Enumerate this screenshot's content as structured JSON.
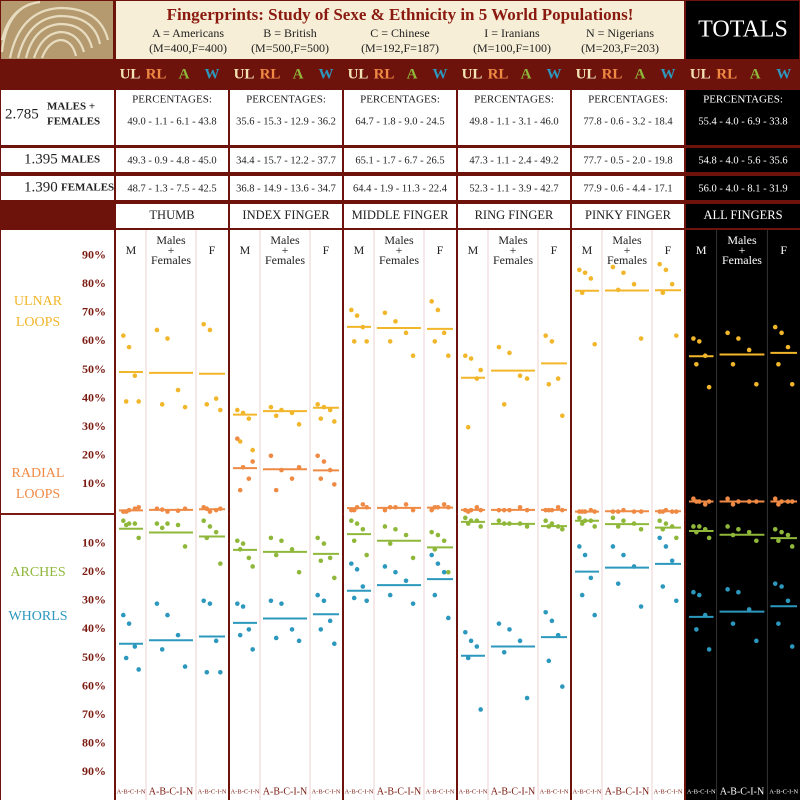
{
  "header": {
    "title": "Fingerprints: Study of Sexe & Ethnicity in 5 World Populations!",
    "legend": [
      {
        "label": "A = Americans",
        "count": "(M=400,F=400)"
      },
      {
        "label": "B = British",
        "count": "(M=500,F=500)"
      },
      {
        "label": "C = Chinese",
        "count": "(M=192,F=187)"
      },
      {
        "label": "I = Iranians",
        "count": "(M=100,F=100)"
      },
      {
        "label": "N = Nigerians",
        "count": "(M=203,F=203)"
      }
    ],
    "totals": "TOTALS"
  },
  "categories": [
    {
      "code": "UL",
      "color": "#f2b62a",
      "header_color": "#f3e3b4",
      "label": [
        "ULNAR",
        "LOOPS"
      ]
    },
    {
      "code": "RL",
      "color": "#ef8a45",
      "header_color": "#ef8a45",
      "label": [
        "RADIAL",
        "LOOPS"
      ]
    },
    {
      "code": "A",
      "color": "#8fb83a",
      "header_color": "#8fb83a",
      "label": [
        "ARCHES"
      ]
    },
    {
      "code": "W",
      "color": "#2c98bd",
      "header_color": "#2c98bd",
      "label": [
        "WHORLS"
      ]
    }
  ],
  "percentages_label": "PERCENTAGES:",
  "row_labels": [
    {
      "count": "2.785",
      "label": [
        "MALES +",
        "FEMALES"
      ]
    },
    {
      "count": "1.395",
      "label": [
        "MALES"
      ]
    },
    {
      "count": "1.390",
      "label": [
        "FEMALES"
      ]
    }
  ],
  "group_labels": [
    [
      "M"
    ],
    [
      "Males",
      "+",
      "Females"
    ],
    [
      "F"
    ]
  ],
  "population_codes": "A-B-C-I-N",
  "axis": {
    "lim": [
      0,
      100
    ],
    "upper_ticks": [
      {
        "value": 90,
        "label": "90%"
      },
      {
        "value": 80,
        "label": "80%"
      },
      {
        "value": 70,
        "label": "70%"
      },
      {
        "value": 60,
        "label": "60%"
      },
      {
        "value": 50,
        "label": "50%"
      },
      {
        "value": 40,
        "label": "40%"
      },
      {
        "value": 30,
        "label": "30%"
      },
      {
        "value": 20,
        "label": "20%"
      },
      {
        "value": 10,
        "label": "10%"
      }
    ],
    "lower_ticks": [
      {
        "value": 10,
        "label": "10%"
      },
      {
        "value": 20,
        "label": "20%"
      },
      {
        "value": 30,
        "label": "30%"
      },
      {
        "value": 40,
        "label": "40%"
      },
      {
        "value": 50,
        "label": "50%"
      },
      {
        "value": 60,
        "label": "60%"
      },
      {
        "value": 70,
        "label": "70%"
      },
      {
        "value": 80,
        "label": "80%"
      },
      {
        "value": 90,
        "label": "90%"
      }
    ]
  },
  "columns": [
    {
      "name": "THUMB",
      "rows": [
        "49.0 - 1.1 - 6.1 - 43.8",
        "49.3 - 0.9 - 4.8 - 45.0",
        "48.7 - 1.3 - 7.5 - 42.5"
      ],
      "groups": [
        {
          "means": [
            49.3,
            0.9,
            4.8,
            45.0
          ],
          "dots": [
            [
              62,
              58,
              48,
              39,
              39
            ],
            [
              0.5,
              1,
              1.5,
              0.5,
              2
            ],
            [
              2,
              3,
              3,
              3.5,
              8
            ],
            [
              35,
              38,
              46,
              50,
              54
            ]
          ]
        },
        {
          "means": [
            49.0,
            1.1,
            6.1,
            43.8
          ],
          "dots": [
            [
              64,
              61,
              43,
              38,
              37
            ],
            [
              1.5,
              0.5,
              0.8,
              1.2,
              1.5
            ],
            [
              3,
              3,
              3.5,
              4.5,
              11
            ],
            [
              31,
              35,
              42,
              47,
              53
            ]
          ]
        },
        {
          "means": [
            48.7,
            1.3,
            7.5,
            42.5
          ],
          "dots": [
            [
              66,
              64,
              40,
              38,
              36
            ],
            [
              2,
              0.5,
              1,
              1.5,
              1.5
            ],
            [
              2,
              4,
              6,
              8,
              17
            ],
            [
              30,
              31,
              44,
              55,
              55
            ]
          ]
        }
      ]
    },
    {
      "name": "INDEX FINGER",
      "rows": [
        "35.6 - 15.3 - 12.9 - 36.2",
        "34.4 - 15.7 - 12.2 - 37.7",
        "36.8 - 14.9 - 13.6 - 34.7"
      ],
      "groups": [
        {
          "means": [
            34.4,
            15.7,
            12.2,
            37.7
          ],
          "dots": [
            [
              36,
              35,
              33,
              25,
              22
            ],
            [
              26,
              16,
              12,
              8,
              18
            ],
            [
              9,
              10,
              15,
              12,
              18
            ],
            [
              31,
              32,
              40,
              42,
              47
            ]
          ]
        },
        {
          "means": [
            35.6,
            15.3,
            12.9,
            36.2
          ],
          "dots": [
            [
              37,
              36,
              35,
              34,
              31
            ],
            [
              20,
              15,
              12,
              8,
              16
            ],
            [
              8,
              9,
              12,
              14,
              20
            ],
            [
              30,
              31,
              40,
              43,
              44
            ]
          ]
        },
        {
          "means": [
            36.8,
            14.9,
            13.6,
            34.7
          ],
          "dots": [
            [
              38,
              37,
              36,
              33,
              32
            ],
            [
              20,
              18,
              15,
              12,
              10
            ],
            [
              8,
              10,
              15,
              16,
              22
            ],
            [
              28,
              30,
              37,
              40,
              45
            ]
          ]
        }
      ]
    },
    {
      "name": "MIDDLE FINGER",
      "rows": [
        "64.7 - 1.8 - 9.0 - 24.5",
        "65.1 - 1.7 - 6.7 - 26.5",
        "64.4 - 1.9 - 11.3 - 22.4"
      ],
      "groups": [
        {
          "means": [
            65.1,
            1.7,
            6.7,
            26.5
          ],
          "dots": [
            [
              71,
              69,
              65,
              60,
              60
            ],
            [
              1,
              2,
              3,
              1,
              2
            ],
            [
              2,
              3,
              5,
              9,
              14
            ],
            [
              17,
              19,
              25,
              29,
              30
            ]
          ]
        },
        {
          "means": [
            64.7,
            1.8,
            9.0,
            24.5
          ],
          "dots": [
            [
              70,
              67,
              63,
              60,
              55
            ],
            [
              1,
              2,
              3,
              2,
              1
            ],
            [
              4,
              5,
              7,
              10,
              15
            ],
            [
              18,
              20,
              23,
              28,
              31
            ]
          ]
        },
        {
          "means": [
            64.4,
            1.9,
            11.3,
            22.4
          ],
          "dots": [
            [
              74,
              71,
              63,
              60,
              55
            ],
            [
              1,
              2,
              3,
              2,
              2
            ],
            [
              6,
              7,
              9,
              12,
              20
            ],
            [
              14,
              17,
              20,
              28,
              36
            ]
          ]
        }
      ]
    },
    {
      "name": "RING FINGER",
      "rows": [
        "49.8 - 1.1 - 3.1 - 46.0",
        "47.3 - 1.1 - 2.4 - 49.2",
        "52.3 - 1.1 - 3.9 - 42.7"
      ],
      "groups": [
        {
          "means": [
            47.3,
            1.1,
            2.4,
            49.2
          ],
          "dots": [
            [
              55,
              54,
              47,
              30,
              50
            ],
            [
              1,
              1,
              2,
              0.5,
              1
            ],
            [
              1,
              2,
              2,
              3,
              4
            ],
            [
              41,
              44,
              46,
              50,
              68
            ]
          ]
        },
        {
          "means": [
            49.8,
            1.1,
            3.1,
            46.0
          ],
          "dots": [
            [
              58,
              56,
              48,
              38,
              47
            ],
            [
              1,
              1,
              2,
              1,
              1
            ],
            [
              2,
              3,
              3,
              3,
              4
            ],
            [
              38,
              40,
              44,
              48,
              64
            ]
          ]
        },
        {
          "means": [
            52.3,
            1.1,
            3.9,
            42.7
          ],
          "dots": [
            [
              62,
              60,
              47,
              45,
              34
            ],
            [
              1,
              1,
              2,
              1,
              1
            ],
            [
              2,
              3,
              4,
              4,
              5
            ],
            [
              34,
              37,
              42,
              51,
              60
            ]
          ]
        }
      ]
    },
    {
      "name": "PINKY FINGER",
      "rows": [
        "77.8 - 0.6 - 3.2 - 18.4",
        "77.7 - 0.5 - 2.0 - 19.8",
        "77.9 - 0.6 - 4.4 - 17.1"
      ],
      "groups": [
        {
          "means": [
            77.7,
            0.5,
            2.0,
            19.8
          ],
          "dots": [
            [
              85,
              84,
              82,
              77,
              59
            ],
            [
              0.5,
              0.5,
              1,
              0.5,
              0.5
            ],
            [
              1,
              2,
              2,
              3,
              4
            ],
            [
              11,
              14,
              22,
              28,
              35
            ]
          ]
        },
        {
          "means": [
            77.8,
            0.6,
            3.2,
            18.4
          ],
          "dots": [
            [
              86,
              84,
              80,
              78,
              61
            ],
            [
              0.5,
              1,
              0.5,
              0.5,
              0.5
            ],
            [
              1,
              2,
              3,
              4,
              5
            ],
            [
              11,
              14,
              18,
              24,
              32
            ]
          ]
        },
        {
          "means": [
            77.9,
            0.6,
            4.4,
            17.1
          ],
          "dots": [
            [
              87,
              85,
              80,
              77,
              62
            ],
            [
              0.5,
              1,
              0.5,
              0.5,
              0.5
            ],
            [
              2,
              3,
              4,
              5,
              8
            ],
            [
              8,
              11,
              16,
              25,
              30
            ]
          ]
        }
      ]
    },
    {
      "name": "ALL FINGERS",
      "totals": true,
      "rows": [
        "55.4 - 4.0 - 6.9 - 33.8",
        "54.8 - 4.0 - 5.6 - 35.6",
        "56.0 - 4.0 - 8.1 - 31.9"
      ],
      "groups": [
        {
          "means": [
            54.8,
            4.0,
            5.6,
            35.6
          ],
          "dots": [
            [
              61,
              60,
              55,
              52,
              44
            ],
            [
              5,
              4,
              3,
              4,
              4
            ],
            [
              4,
              4,
              5,
              6,
              8
            ],
            [
              27,
              28,
              35,
              40,
              47
            ]
          ]
        },
        {
          "means": [
            55.4,
            4.0,
            6.9,
            33.8
          ],
          "dots": [
            [
              63,
              61,
              57,
              52,
              45
            ],
            [
              5,
              4,
              4,
              3,
              4
            ],
            [
              4,
              5,
              6,
              7,
              9
            ],
            [
              26,
              27,
              33,
              38,
              44
            ]
          ]
        },
        {
          "means": [
            56.0,
            4.0,
            8.1,
            31.9
          ],
          "dots": [
            [
              65,
              63,
              58,
              52,
              45
            ],
            [
              5,
              4,
              4,
              3,
              4
            ],
            [
              5,
              6,
              7,
              9,
              11
            ],
            [
              24,
              25,
              30,
              38,
              46
            ]
          ]
        }
      ]
    }
  ]
}
